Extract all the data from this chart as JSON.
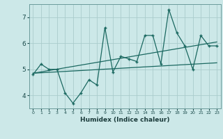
{
  "xlabel": "Humidex (Indice chaleur)",
  "bg_color": "#cce8e8",
  "grid_color": "#aacccc",
  "line_color": "#1a6860",
  "x_values": [
    0,
    1,
    2,
    3,
    4,
    5,
    6,
    7,
    8,
    9,
    10,
    11,
    12,
    13,
    14,
    15,
    16,
    17,
    18,
    19,
    20,
    21,
    22,
    23
  ],
  "y_values": [
    4.8,
    5.2,
    5.0,
    5.0,
    4.1,
    3.7,
    4.1,
    4.6,
    4.4,
    6.6,
    4.9,
    5.5,
    5.4,
    5.3,
    6.3,
    6.3,
    5.2,
    7.3,
    6.4,
    5.9,
    5.0,
    6.3,
    5.9,
    5.9
  ],
  "trend1_x": [
    0,
    23
  ],
  "trend1_y": [
    4.85,
    5.25
  ],
  "trend2_x": [
    0,
    23
  ],
  "trend2_y": [
    4.85,
    6.05
  ],
  "ylim": [
    3.5,
    7.5
  ],
  "yticks": [
    4,
    5,
    6,
    7
  ],
  "xlim": [
    -0.5,
    23.5
  ],
  "xticks": [
    0,
    1,
    2,
    3,
    4,
    5,
    6,
    7,
    8,
    9,
    10,
    11,
    12,
    13,
    14,
    15,
    16,
    17,
    18,
    19,
    20,
    21,
    22,
    23
  ]
}
